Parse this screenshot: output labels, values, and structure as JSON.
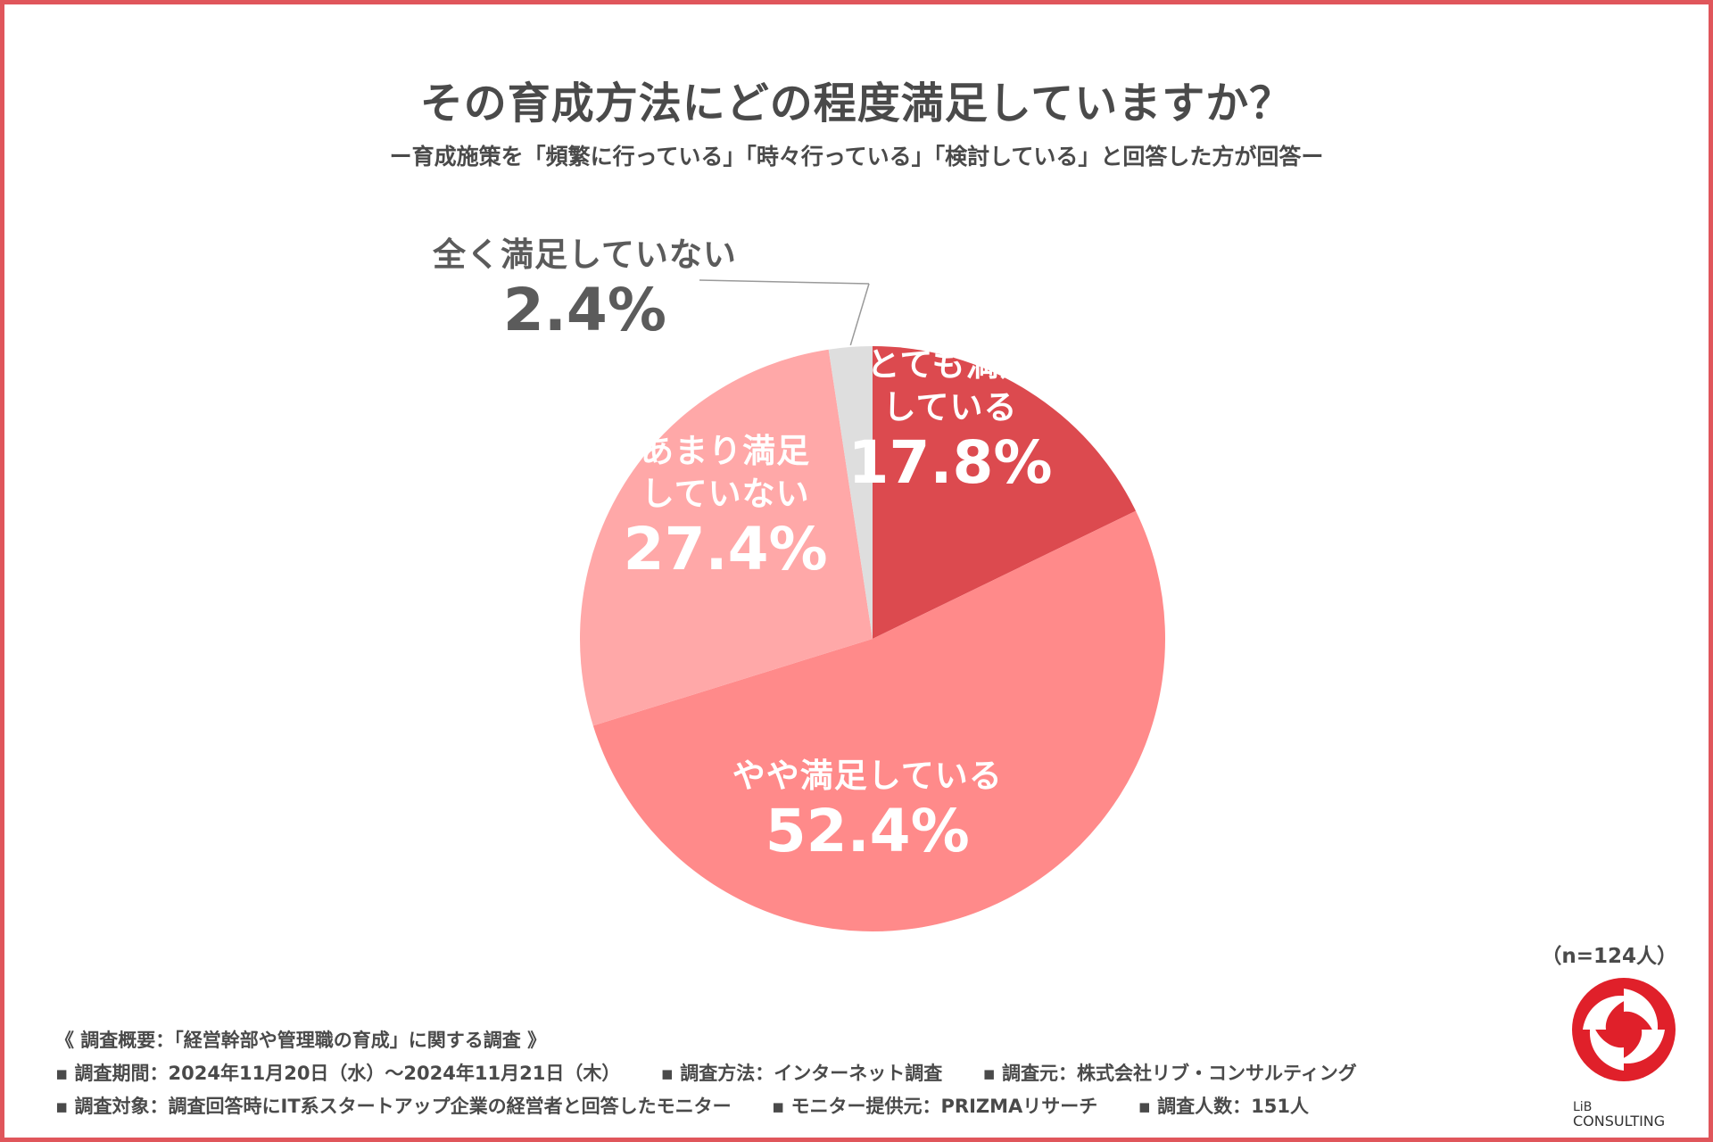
{
  "title": "その育成方法にどの程度満足していますか？",
  "subtitle": "ー育成施策を「頻繁に行っている」「時々行っている」「検討している」と回答した方が回答ー",
  "chart_data": {
    "type": "pie",
    "title": "その育成方法にどの程度満足していますか？",
    "start": "top, clockwise",
    "categories": [
      "とても満足している",
      "やや満足している",
      "あまり満足していない",
      "全く満足していない"
    ],
    "values": [
      17.8,
      52.4,
      27.4,
      2.4
    ],
    "unit": "%",
    "colors": [
      "#dc4a4f",
      "#ff8a8a",
      "#ffa8a8",
      "#dedede"
    ],
    "labels": [
      {
        "line1": "とても満足",
        "line2": "している",
        "value": "17.8%"
      },
      {
        "line1": "やや満足している",
        "line2": "",
        "value": "52.4%"
      },
      {
        "line1": "あまり満足",
        "line2": "していない",
        "value": "27.4%"
      },
      {
        "line1": "全く満足していない",
        "line2": "",
        "value": "2.4%"
      }
    ]
  },
  "sample": "（n=124人）",
  "footer": {
    "heading": "《 調査概要：「経営幹部や管理職の育成」に関する調査 》",
    "period": "▪ 調査期間：2024年11月20日（水）～2024年11月21日（木）",
    "method": "▪ 調査方法：インターネット調査",
    "source": "▪ 調査元：株式会社リブ・コンサルティング",
    "target": "▪ 調査対象：調査回答時にIT系スタートアップ企業の経営者と回答したモニター",
    "provider": "▪ モニター提供元：PRIZMAリサーチ",
    "count": "▪ 調査人数：151人"
  },
  "logo": {
    "line1": "LiB",
    "line2": "CONSULTING",
    "color": "#e0202a"
  }
}
